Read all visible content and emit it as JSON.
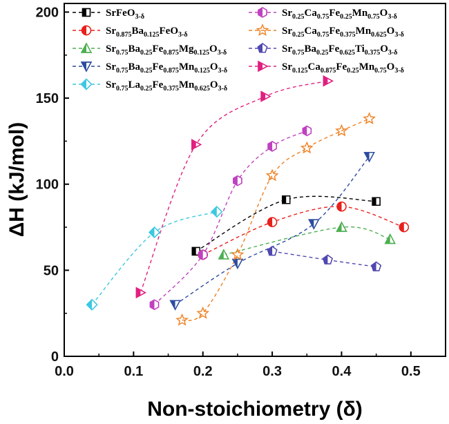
{
  "chart_data": {
    "type": "scatter",
    "xlabel": "Non-stoichiometry (δ)",
    "ylabel": "ΔH (kJ/mol)",
    "xlim": [
      0.0,
      0.55
    ],
    "ylim": [
      0,
      205
    ],
    "xticks": [
      "0.0",
      "0.1",
      "0.2",
      "0.3",
      "0.4",
      "0.5"
    ],
    "yticks": [
      "0",
      "50",
      "100",
      "150",
      "200"
    ],
    "grid": false,
    "legend_position": "top",
    "series": [
      {
        "name": "SrFeO3-δ",
        "name_parts": [
          [
            "SrFeO",
            ""
          ],
          [
            "3-δ",
            "sub"
          ]
        ],
        "color": "#000000",
        "marker": "square-half",
        "x": [
          0.19,
          0.32,
          0.45
        ],
        "y": [
          61,
          91,
          90
        ]
      },
      {
        "name": "Sr0.875Ba0.125FeO3-δ",
        "name_parts": [
          [
            "Sr",
            ""
          ],
          [
            "0.875",
            "sub"
          ],
          [
            "Ba",
            ""
          ],
          [
            "0.125",
            "sub"
          ],
          [
            "FeO",
            ""
          ],
          [
            "3-δ",
            "sub"
          ]
        ],
        "color": "#e8201c",
        "marker": "circle-half",
        "x": [
          0.2,
          0.3,
          0.4,
          0.49
        ],
        "y": [
          59,
          78,
          87,
          75
        ]
      },
      {
        "name": "Sr0.75Ba0.25Fe0.875Mg0.125O3-δ",
        "name_parts": [
          [
            "Sr",
            ""
          ],
          [
            "0.75",
            "sub"
          ],
          [
            "Ba",
            ""
          ],
          [
            "0.25",
            "sub"
          ],
          [
            "Fe",
            ""
          ],
          [
            "0.875",
            "sub"
          ],
          [
            "Mg",
            ""
          ],
          [
            "0.125",
            "sub"
          ],
          [
            "O",
            ""
          ],
          [
            "3-δ",
            "sub"
          ]
        ],
        "color": "#4caf50",
        "marker": "triangle-half",
        "x": [
          0.23,
          0.4,
          0.47
        ],
        "y": [
          59,
          75,
          68
        ]
      },
      {
        "name": "Sr0.75Ba0.25Fe0.875Mn0.125O3-δ",
        "name_parts": [
          [
            "Sr",
            ""
          ],
          [
            "0.75",
            "sub"
          ],
          [
            "Ba",
            ""
          ],
          [
            "0.25",
            "sub"
          ],
          [
            "Fe",
            ""
          ],
          [
            "0.875",
            "sub"
          ],
          [
            "Mn",
            ""
          ],
          [
            "0.125",
            "sub"
          ],
          [
            "O",
            ""
          ],
          [
            "3-δ",
            "sub"
          ]
        ],
        "color": "#2c4ca0",
        "marker": "triangle-down-half",
        "x": [
          0.16,
          0.25,
          0.36,
          0.44
        ],
        "y": [
          30,
          54,
          77,
          116
        ]
      },
      {
        "name": "Sr0.75La0.25Fe0.375Mn0.625O3-δ",
        "name_parts": [
          [
            "Sr",
            ""
          ],
          [
            "0.75",
            "sub"
          ],
          [
            "La",
            ""
          ],
          [
            "0.25",
            "sub"
          ],
          [
            "Fe",
            ""
          ],
          [
            "0.375",
            "sub"
          ],
          [
            "Mn",
            ""
          ],
          [
            "0.625",
            "sub"
          ],
          [
            "O",
            ""
          ],
          [
            "3-δ",
            "sub"
          ]
        ],
        "color": "#3cc8e0",
        "marker": "diamond-half",
        "x": [
          0.04,
          0.13,
          0.22
        ],
        "y": [
          30,
          72,
          84
        ]
      },
      {
        "name": "Sr0.25Ca0.75Fe0.25Mn0.75O3-δ",
        "name_parts": [
          [
            "Sr",
            ""
          ],
          [
            "0.25",
            "sub"
          ],
          [
            "Ca",
            ""
          ],
          [
            "0.75",
            "sub"
          ],
          [
            "Fe",
            ""
          ],
          [
            "0.25",
            "sub"
          ],
          [
            "Mn",
            ""
          ],
          [
            "0.75",
            "sub"
          ],
          [
            "O",
            ""
          ],
          [
            "3-δ",
            "sub"
          ]
        ],
        "color": "#c040c0",
        "marker": "hexagon-half",
        "x": [
          0.13,
          0.2,
          0.25,
          0.3,
          0.35
        ],
        "y": [
          30,
          59,
          102,
          122,
          131
        ]
      },
      {
        "name": "Sr0.25Ca0.75Fe0.375Mn0.625O3-δ",
        "name_parts": [
          [
            "Sr",
            ""
          ],
          [
            "0.25",
            "sub"
          ],
          [
            "Ca",
            ""
          ],
          [
            "0.75",
            "sub"
          ],
          [
            "Fe",
            ""
          ],
          [
            "0.375",
            "sub"
          ],
          [
            "Mn",
            ""
          ],
          [
            "0.625",
            "sub"
          ],
          [
            "O",
            ""
          ],
          [
            "3-δ",
            "sub"
          ]
        ],
        "color": "#f08020",
        "marker": "star",
        "x": [
          0.17,
          0.2,
          0.25,
          0.3,
          0.35,
          0.4,
          0.44
        ],
        "y": [
          21,
          25,
          59,
          105,
          121,
          131,
          138
        ]
      },
      {
        "name": "Sr0.75Ba0.25Fe0.625Ti0.375O3-δ",
        "name_parts": [
          [
            "Sr",
            ""
          ],
          [
            "0.75",
            "sub"
          ],
          [
            "Ba",
            ""
          ],
          [
            "0.25",
            "sub"
          ],
          [
            "Fe",
            ""
          ],
          [
            "0.625",
            "sub"
          ],
          [
            "Ti",
            ""
          ],
          [
            "0.375",
            "sub"
          ],
          [
            "O",
            ""
          ],
          [
            "3-δ",
            "sub"
          ]
        ],
        "color": "#5048b0",
        "marker": "pentagon-half",
        "x": [
          0.3,
          0.38,
          0.45
        ],
        "y": [
          61,
          56,
          52
        ]
      },
      {
        "name": "Sr0.125Ca0.875Fe0.25Mn0.75O3-δ",
        "name_parts": [
          [
            "Sr",
            ""
          ],
          [
            "0.125",
            "sub"
          ],
          [
            "Ca",
            ""
          ],
          [
            "0.875",
            "sub"
          ],
          [
            "Fe",
            ""
          ],
          [
            "0.25",
            "sub"
          ],
          [
            "Mn",
            ""
          ],
          [
            "0.75",
            "sub"
          ],
          [
            "O",
            ""
          ],
          [
            "3-δ",
            "sub"
          ]
        ],
        "color": "#e02080",
        "marker": "triangle-right-half",
        "x": [
          0.11,
          0.19,
          0.29,
          0.38
        ],
        "y": [
          37,
          123,
          151,
          160
        ]
      }
    ]
  }
}
